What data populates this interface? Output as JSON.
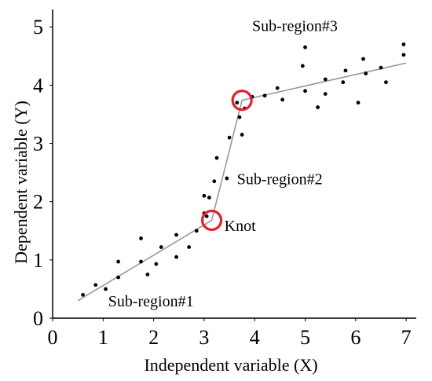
{
  "chart_data": {
    "type": "scatter",
    "xlabel": "Independent variable (X)",
    "ylabel": "Dependent variable (Y)",
    "xlim": [
      0,
      7.2
    ],
    "ylim": [
      0,
      5.3
    ],
    "xticks": [
      0,
      1,
      2,
      3,
      4,
      5,
      6,
      7
    ],
    "yticks": [
      0,
      1,
      2,
      3,
      4,
      5
    ],
    "grid": false,
    "points": [
      [
        0.6,
        0.4
      ],
      [
        0.85,
        0.57
      ],
      [
        1.05,
        0.5
      ],
      [
        1.3,
        0.97
      ],
      [
        1.3,
        0.7
      ],
      [
        1.75,
        1.37
      ],
      [
        1.75,
        0.97
      ],
      [
        1.88,
        0.75
      ],
      [
        2.05,
        0.93
      ],
      [
        2.15,
        1.22
      ],
      [
        2.45,
        1.43
      ],
      [
        2.45,
        1.05
      ],
      [
        2.7,
        1.22
      ],
      [
        2.85,
        1.5
      ],
      [
        3.0,
        1.8
      ],
      [
        3.0,
        2.1
      ],
      [
        3.05,
        1.75
      ],
      [
        3.1,
        2.07
      ],
      [
        3.2,
        2.35
      ],
      [
        3.25,
        2.75
      ],
      [
        3.45,
        2.4
      ],
      [
        3.5,
        3.1
      ],
      [
        3.65,
        3.7
      ],
      [
        3.7,
        3.45
      ],
      [
        3.75,
        3.15
      ],
      [
        3.8,
        3.6
      ],
      [
        3.95,
        3.8
      ],
      [
        4.2,
        3.82
      ],
      [
        4.45,
        3.95
      ],
      [
        4.55,
        3.75
      ],
      [
        4.95,
        4.33
      ],
      [
        5.0,
        3.9
      ],
      [
        5.0,
        4.65
      ],
      [
        5.25,
        3.62
      ],
      [
        5.4,
        3.85
      ],
      [
        5.4,
        4.1
      ],
      [
        5.75,
        4.05
      ],
      [
        5.8,
        4.25
      ],
      [
        6.05,
        3.7
      ],
      [
        6.15,
        4.45
      ],
      [
        6.2,
        4.2
      ],
      [
        6.5,
        4.3
      ],
      [
        6.6,
        4.05
      ],
      [
        6.95,
        4.7
      ],
      [
        6.95,
        4.52
      ]
    ],
    "segments": [
      [
        [
          0.5,
          0.3
        ],
        [
          3.15,
          1.68
        ]
      ],
      [
        [
          3.15,
          1.68
        ],
        [
          3.75,
          3.74
        ]
      ],
      [
        [
          3.75,
          3.74
        ],
        [
          7.0,
          4.38
        ]
      ]
    ],
    "knots": [
      [
        3.15,
        1.68
      ],
      [
        3.75,
        3.74
      ]
    ],
    "annotations": [
      {
        "text": "Sub-region#1",
        "x": 1.1,
        "y": 0.2
      },
      {
        "text": "Knot",
        "x": 3.4,
        "y": 1.5
      },
      {
        "text": "Sub-region#2",
        "x": 3.65,
        "y": 2.3
      },
      {
        "text": "Sub-region#3",
        "x": 3.95,
        "y": 4.93
      }
    ],
    "colors": {
      "points": "#000000",
      "line": "#999999",
      "knot": "#e0202a",
      "axis": "#000000"
    }
  }
}
